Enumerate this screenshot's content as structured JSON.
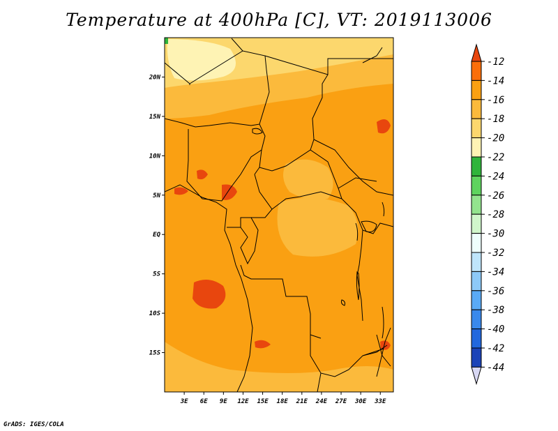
{
  "title": "Temperature at 400hPa [C], VT: 2019113006",
  "credit": "GrADS: IGES/COLA",
  "map": {
    "lon_ticks": [
      "3E",
      "6E",
      "9E",
      "12E",
      "15E",
      "18E",
      "21E",
      "24E",
      "27E",
      "30E",
      "33E"
    ],
    "lat_ticks": [
      "20N",
      "15N",
      "10N",
      "5N",
      "EQ",
      "5S",
      "10S",
      "15S"
    ],
    "lon_range": [
      0,
      35
    ],
    "lat_range": [
      -20,
      25
    ],
    "dominant_range_c": "-16 to -14"
  },
  "colorbar": {
    "labels": [
      "-12",
      "-14",
      "-16",
      "-18",
      "-20",
      "-22",
      "-24",
      "-26",
      "-28",
      "-30",
      "-32",
      "-34",
      "-36",
      "-38",
      "-40",
      "-42",
      "-44"
    ],
    "colors": [
      "#e8460e",
      "#fa6e0a",
      "#faa012",
      "#fbba3c",
      "#fcd76d",
      "#fef3b4",
      "#2fb43b",
      "#5ed35e",
      "#93e38e",
      "#d0f6cb",
      "#eefefc",
      "#bfe5fb",
      "#8dc9f8",
      "#5aaaf5",
      "#3a89ec",
      "#2268de",
      "#1b43b8",
      "#0c1f86",
      "#d8d8f4"
    ],
    "top_arrow_color": "#e8460e",
    "bottom_arrow_color": "#d8d8f4"
  }
}
